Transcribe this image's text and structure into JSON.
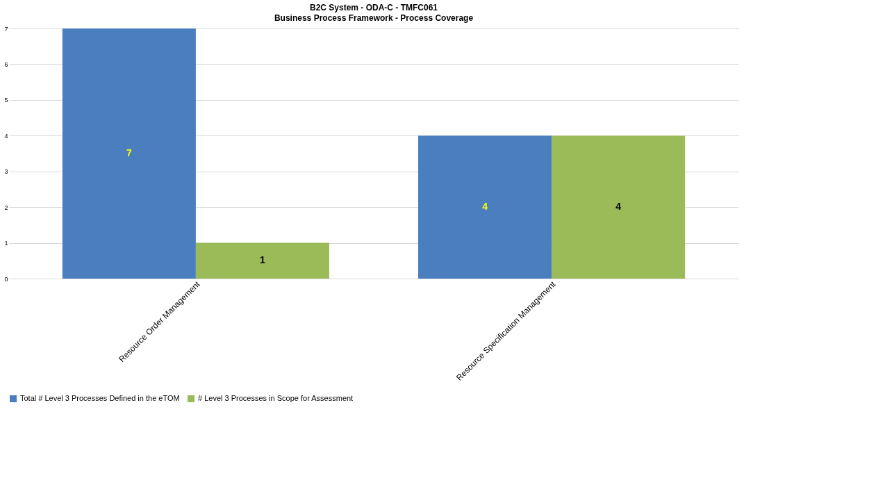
{
  "chart_data": {
    "type": "bar",
    "title": "B2C System - ODA-C - TMFC061",
    "subtitle": "Business Process Framework - Process Coverage",
    "categories": [
      "Resource Order Management",
      "Resource Specification Management"
    ],
    "series": [
      {
        "name": "Total # Level 3 Processes Defined in the eTOM",
        "color": "#4a7ebf",
        "values": [
          7,
          4
        ]
      },
      {
        "name": "# Level 3 Processes in Scope for Assessment",
        "color": "#9bbb59",
        "values": [
          1,
          4
        ]
      }
    ],
    "ylim": [
      0,
      7
    ],
    "yticks": [
      0,
      1,
      2,
      3,
      4,
      5,
      6,
      7
    ],
    "grid": "y",
    "legend": "bottom",
    "data_labels": true
  }
}
